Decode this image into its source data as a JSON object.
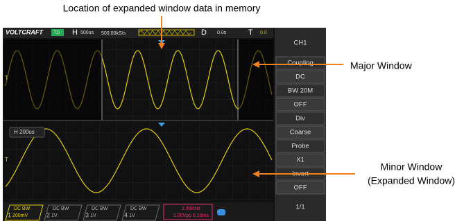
{
  "annotations": {
    "memory": "Location of expanded window data in memory",
    "major": "Major Window",
    "minor": [
      "Minor Window",
      "(Expanded Window)"
    ]
  },
  "top_bar": {
    "brand": "VOLTCRAFT",
    "mode": "TD",
    "h": "H",
    "timebase": "500us",
    "rate": "500.00kS/s",
    "d": "D",
    "delay": "0.0s",
    "t": "T",
    "trig": "0.0"
  },
  "minor_label": "H 200us",
  "menu": {
    "title": "CH1",
    "items": [
      "Coupling",
      "DC",
      "BW 20M",
      "OFF",
      "Div",
      "Coarse",
      "Probe",
      "X1",
      "Invert",
      "OFF"
    ],
    "page": "1/1"
  },
  "channels": [
    {
      "num": "1",
      "line1": "DC  BW",
      "line2": "200mV"
    },
    {
      "num": "2",
      "line1": "DC  BW",
      "line2": "1V"
    },
    {
      "num": "3",
      "line1": "DC  BW",
      "line2": "1V"
    },
    {
      "num": "4",
      "line1": "DC  BW",
      "line2": "1V"
    }
  ],
  "trigger": {
    "freq": "1.00KHz",
    "info": "1.00Vpp 0.10ms"
  }
}
